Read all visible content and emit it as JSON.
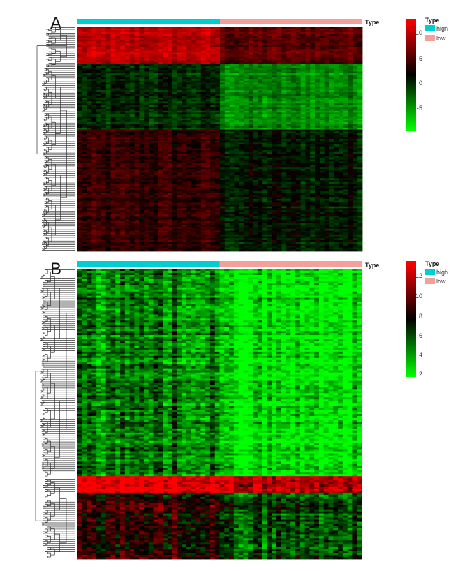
{
  "panels": [
    {
      "label": "A",
      "annotation_title": "Type",
      "colorbar": {
        "ticks": [
          10,
          5,
          0,
          -5
        ],
        "range": [
          -9,
          13
        ],
        "colors": [
          "#00ff00",
          "#000000",
          "#ff0000"
        ]
      },
      "groups": [
        {
          "name": "high",
          "color": "#00ced1"
        },
        {
          "name": "low",
          "color": "#f4a09a"
        }
      ]
    },
    {
      "label": "B",
      "annotation_title": "Type",
      "colorbar": {
        "ticks": [
          12,
          10,
          8,
          6,
          4,
          2
        ],
        "range": [
          2,
          13
        ],
        "colors": [
          "#00ff00",
          "#000000",
          "#ff0000"
        ]
      },
      "groups": [
        {
          "name": "high",
          "color": "#00ced1"
        },
        {
          "name": "low",
          "color": "#f4a09a"
        }
      ]
    }
  ],
  "legend_title": "Type",
  "chart_data": [
    {
      "type": "heatmap",
      "panel": "A",
      "column_groups": [
        {
          "name": "high",
          "count": 30
        },
        {
          "name": "low",
          "count": 30
        }
      ],
      "row_count": 120,
      "value_range": [
        -9,
        13
      ],
      "color_scale": {
        "low": "#00ff00",
        "mid": "#000000",
        "high": "#ff0000"
      },
      "colorbar_ticks": [
        10,
        5,
        0,
        -5
      ],
      "row_blocks": [
        {
          "rows": 20,
          "high_group_mean": 10,
          "low_group_mean": 6
        },
        {
          "rows": 35,
          "high_group_mean": 0,
          "low_group_mean": -4
        },
        {
          "rows": 65,
          "high_group_mean": 4,
          "low_group_mean": 1
        }
      ],
      "legend": [
        "high",
        "low"
      ]
    },
    {
      "type": "heatmap",
      "panel": "B",
      "column_groups": [
        {
          "name": "high",
          "count": 30
        },
        {
          "name": "low",
          "count": 30
        }
      ],
      "row_count": 140,
      "value_range": [
        2,
        13
      ],
      "color_scale": {
        "low": "#00ff00",
        "mid": "#000000",
        "high": "#ff0000"
      },
      "colorbar_ticks": [
        12,
        10,
        8,
        6,
        4,
        2
      ],
      "row_blocks": [
        {
          "rows": 100,
          "high_group_mean": 5,
          "low_group_mean": 2.6
        },
        {
          "rows": 8,
          "high_group_mean": 12.5,
          "low_group_mean": 11
        },
        {
          "rows": 32,
          "high_group_mean": 8.5,
          "low_group_mean": 6
        }
      ],
      "legend": [
        "high",
        "low"
      ]
    }
  ]
}
